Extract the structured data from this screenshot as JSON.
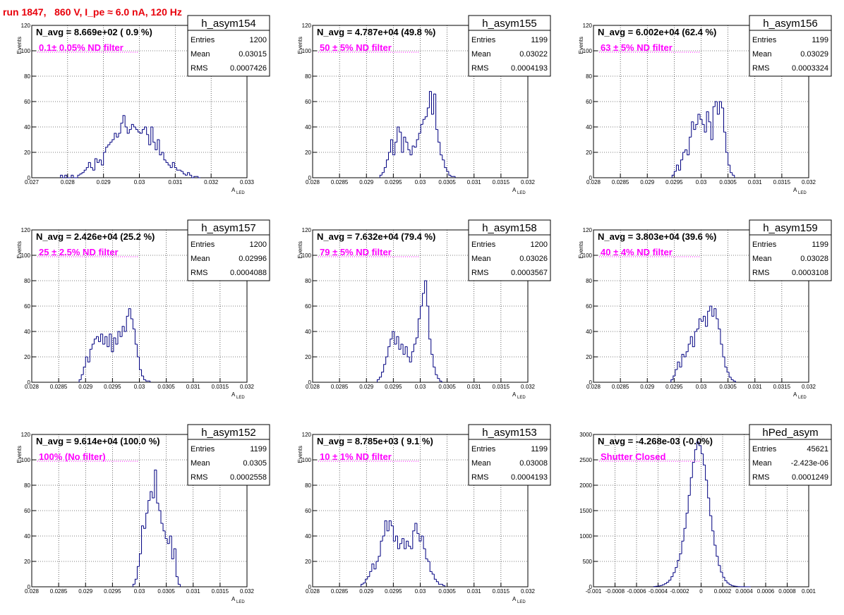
{
  "header": {
    "run_title": "run 1847,   860 V, I_pe ≈ 6.0 nA, 120 Hz"
  },
  "colors": {
    "histogram": "#000080",
    "title": "#e8000b",
    "annotation": "#ff00ff"
  },
  "chart_data": [
    {
      "type": "histogram",
      "name": "h_asym154",
      "navg": "N_avg = 8.669e+02 ( 0.9 %)",
      "note": "0.1± 0.05% ND filter",
      "stats": [
        [
          "Entries",
          "1200"
        ],
        [
          "Mean",
          "0.03015"
        ],
        [
          "RMS",
          "0.0007426"
        ]
      ],
      "ylabel": "Events",
      "xlabel": "A",
      "xlabel_sub": "LED",
      "xlim": [
        0.027,
        0.033
      ],
      "ylim": [
        0,
        120
      ],
      "xticks": [
        0.027,
        0.028,
        0.029,
        0.03,
        0.031,
        0.032,
        0.033
      ],
      "xtick_labels": [
        "0.027",
        "0.028",
        "0.029",
        "0.03",
        "0.031",
        "0.032",
        "0.033"
      ],
      "yticks": [
        0,
        20,
        40,
        60,
        80,
        100,
        120
      ],
      "ytick_labels": [
        "0",
        "20",
        "40",
        "60",
        "80",
        "100",
        "120"
      ],
      "bin_start": 0.0278,
      "bin_width": 6e-05,
      "values": [
        2,
        0,
        2,
        0,
        0,
        2,
        0,
        0,
        2,
        3,
        4,
        6,
        8,
        12,
        8,
        6,
        15,
        12,
        14,
        10,
        20,
        24,
        26,
        28,
        30,
        35,
        32,
        35,
        43,
        49,
        40,
        35,
        38,
        42,
        40,
        38,
        36,
        35,
        38,
        40,
        34,
        26,
        40,
        28,
        22,
        30,
        18,
        20,
        14,
        12,
        10,
        8,
        12,
        8,
        6,
        6,
        5,
        3,
        2,
        4,
        2,
        0,
        1,
        1,
        0
      ]
    },
    {
      "type": "histogram",
      "name": "h_asym155",
      "navg": "N_avg = 4.787e+04 (49.8 %)",
      "note": "50 ± 5% ND filter",
      "stats": [
        [
          "Entries",
          "1199"
        ],
        [
          "Mean",
          "0.03022"
        ],
        [
          "RMS",
          "0.0004193"
        ]
      ],
      "ylabel": "Events",
      "xlabel": "A",
      "xlabel_sub": "LED",
      "xlim": [
        0.028,
        0.032
      ],
      "ylim": [
        0,
        120
      ],
      "xticks": [
        0.028,
        0.0285,
        0.029,
        0.0295,
        0.03,
        0.0305,
        0.031,
        0.0315,
        0.032
      ],
      "xtick_labels": [
        "0.028",
        "0.0285",
        "0.029",
        "0.0295",
        "0.03",
        "0.0305",
        "0.031",
        "0.0315",
        "0.032"
      ],
      "yticks": [
        0,
        20,
        40,
        60,
        80,
        100,
        120
      ],
      "ytick_labels": [
        "0",
        "20",
        "40",
        "60",
        "80",
        "100",
        "120"
      ],
      "bin_start": 0.02925,
      "bin_width": 4e-05,
      "values": [
        2,
        4,
        8,
        14,
        20,
        30,
        18,
        28,
        40,
        36,
        20,
        32,
        28,
        22,
        18,
        25,
        24,
        30,
        35,
        42,
        46,
        48,
        55,
        68,
        50,
        66,
        38,
        28,
        18,
        14,
        8,
        5,
        2,
        1,
        1
      ]
    },
    {
      "type": "histogram",
      "name": "h_asym156",
      "navg": "N_avg = 6.002e+04 (62.4 %)",
      "note": "63 ± 5% ND filter",
      "stats": [
        [
          "Entries",
          "1199"
        ],
        [
          "Mean",
          "0.03029"
        ],
        [
          "RMS",
          "0.0003324"
        ]
      ],
      "ylabel": "Events",
      "xlabel": "A",
      "xlabel_sub": "LED",
      "xlim": [
        0.028,
        0.032
      ],
      "ylim": [
        0,
        120
      ],
      "xticks": [
        0.028,
        0.0285,
        0.029,
        0.0295,
        0.03,
        0.0305,
        0.031,
        0.0315,
        0.032
      ],
      "xtick_labels": [
        "0.028",
        "0.0285",
        "0.029",
        "0.0295",
        "0.03",
        "0.0305",
        "0.031",
        "0.0315",
        "0.032"
      ],
      "yticks": [
        0,
        20,
        40,
        60,
        80,
        100,
        120
      ],
      "ytick_labels": [
        "0",
        "20",
        "40",
        "60",
        "80",
        "100",
        "120"
      ],
      "bin_start": 0.02946,
      "bin_width": 4e-05,
      "values": [
        2,
        5,
        10,
        6,
        14,
        20,
        22,
        18,
        32,
        44,
        38,
        42,
        50,
        46,
        42,
        36,
        52,
        44,
        30,
        56,
        60,
        50,
        60,
        55,
        36,
        20,
        10,
        4,
        2
      ]
    },
    {
      "type": "histogram",
      "name": "h_asym157",
      "navg": "N_avg = 2.426e+04 (25.2 %)",
      "note": "25 ± 2.5% ND filter",
      "stats": [
        [
          "Entries",
          "1200"
        ],
        [
          "Mean",
          "0.02996"
        ],
        [
          "RMS",
          "0.0004088"
        ]
      ],
      "ylabel": "Events",
      "xlabel": "A",
      "xlabel_sub": "LED",
      "xlim": [
        0.028,
        0.032
      ],
      "ylim": [
        0,
        120
      ],
      "xticks": [
        0.028,
        0.0285,
        0.029,
        0.0295,
        0.03,
        0.0305,
        0.031,
        0.0315,
        0.032
      ],
      "xtick_labels": [
        "0.028",
        "0.0285",
        "0.029",
        "0.0295",
        "0.03",
        "0.0305",
        "0.031",
        "0.0315",
        "0.032"
      ],
      "yticks": [
        0,
        20,
        40,
        60,
        80,
        100,
        120
      ],
      "ytick_labels": [
        "0",
        "20",
        "40",
        "60",
        "80",
        "100",
        "120"
      ],
      "bin_start": 0.02888,
      "bin_width": 4e-05,
      "values": [
        2,
        6,
        12,
        20,
        16,
        26,
        30,
        34,
        36,
        32,
        38,
        30,
        36,
        28,
        38,
        24,
        35,
        30,
        40,
        36,
        44,
        40,
        52,
        58,
        50,
        42,
        30,
        20,
        10,
        5,
        2,
        1,
        1
      ]
    },
    {
      "type": "histogram",
      "name": "h_asym158",
      "navg": "N_avg = 7.632e+04 (79.4 %)",
      "note": "79 ± 5% ND filter",
      "stats": [
        [
          "Entries",
          "1200"
        ],
        [
          "Mean",
          "0.03026"
        ],
        [
          "RMS",
          "0.0003567"
        ]
      ],
      "ylabel": "Events",
      "xlabel": "A",
      "xlabel_sub": "LED",
      "xlim": [
        0.028,
        0.032
      ],
      "ylim": [
        0,
        120
      ],
      "xticks": [
        0.028,
        0.0285,
        0.029,
        0.0295,
        0.03,
        0.0305,
        0.031,
        0.0315,
        0.032
      ],
      "xtick_labels": [
        "0.028",
        "0.0285",
        "0.029",
        "0.0295",
        "0.03",
        "0.0305",
        "0.031",
        "0.0315",
        "0.032"
      ],
      "yticks": [
        0,
        20,
        40,
        60,
        80,
        100,
        120
      ],
      "ytick_labels": [
        "0",
        "20",
        "40",
        "60",
        "80",
        "100",
        "120"
      ],
      "bin_start": 0.0292,
      "bin_width": 4e-05,
      "values": [
        2,
        4,
        8,
        14,
        20,
        28,
        34,
        40,
        30,
        36,
        26,
        30,
        22,
        28,
        20,
        16,
        24,
        30,
        35,
        50,
        60,
        70,
        80,
        60,
        34,
        22,
        12,
        6,
        3,
        1
      ]
    },
    {
      "type": "histogram",
      "name": "h_asym159",
      "navg": "N_avg = 3.803e+04 (39.6 %)",
      "note": "40 ± 4% ND filter",
      "stats": [
        [
          "Entries",
          "1199"
        ],
        [
          "Mean",
          "0.03028"
        ],
        [
          "RMS",
          "0.0003108"
        ]
      ],
      "ylabel": "Events",
      "xlabel": "A",
      "xlabel_sub": "LED",
      "xlim": [
        0.028,
        0.032
      ],
      "ylim": [
        0,
        120
      ],
      "xticks": [
        0.028,
        0.0285,
        0.029,
        0.0295,
        0.03,
        0.0305,
        0.031,
        0.0315,
        0.032
      ],
      "xtick_labels": [
        "0.028",
        "0.0285",
        "0.029",
        "0.0295",
        "0.03",
        "0.0305",
        "0.031",
        "0.0315",
        "0.032"
      ],
      "yticks": [
        0,
        20,
        40,
        60,
        80,
        100,
        120
      ],
      "ytick_labels": [
        "0",
        "20",
        "40",
        "60",
        "80",
        "100",
        "120"
      ],
      "bin_start": 0.02944,
      "bin_width": 4e-05,
      "values": [
        2,
        5,
        10,
        16,
        12,
        22,
        20,
        24,
        30,
        36,
        28,
        40,
        42,
        50,
        48,
        52,
        44,
        56,
        60,
        52,
        58,
        50,
        42,
        30,
        20,
        12,
        8,
        4,
        2,
        1
      ]
    },
    {
      "type": "histogram",
      "name": "h_asym152",
      "navg": "N_avg = 9.614e+04 (100.0 %)",
      "note": "100% (No filter)",
      "stats": [
        [
          "Entries",
          "1199"
        ],
        [
          "Mean",
          "0.0305"
        ],
        [
          "RMS",
          "0.0002558"
        ]
      ],
      "ylabel": "Events",
      "xlabel": "A",
      "xlabel_sub": "LED",
      "xlim": [
        0.028,
        0.032
      ],
      "ylim": [
        0,
        120
      ],
      "xticks": [
        0.028,
        0.0285,
        0.029,
        0.0295,
        0.03,
        0.0305,
        0.031,
        0.0315,
        0.032
      ],
      "xtick_labels": [
        "0.028",
        "0.0285",
        "0.029",
        "0.0295",
        "0.03",
        "0.0305",
        "0.031",
        "0.0315",
        "0.032"
      ],
      "yticks": [
        0,
        20,
        40,
        60,
        80,
        100,
        120
      ],
      "ytick_labels": [
        "0",
        "20",
        "40",
        "60",
        "80",
        "100",
        "120"
      ],
      "bin_start": 0.02988,
      "bin_width": 4e-05,
      "values": [
        2,
        6,
        16,
        26,
        48,
        46,
        58,
        68,
        75,
        70,
        92,
        66,
        60,
        50,
        44,
        38,
        34,
        40,
        22,
        30,
        8,
        2
      ]
    },
    {
      "type": "histogram",
      "name": "h_asym153",
      "navg": "N_avg = 8.785e+03 ( 9.1 %)",
      "note": "10 ± 1% ND filter",
      "stats": [
        [
          "Entries",
          "1199"
        ],
        [
          "Mean",
          "0.03008"
        ],
        [
          "RMS",
          "0.0004193"
        ]
      ],
      "ylabel": "Events",
      "xlabel": "A",
      "xlabel_sub": "LED",
      "xlim": [
        0.028,
        0.032
      ],
      "ylim": [
        0,
        120
      ],
      "xticks": [
        0.028,
        0.0285,
        0.029,
        0.0295,
        0.03,
        0.0305,
        0.031,
        0.0315,
        0.032
      ],
      "xtick_labels": [
        "0.028",
        "0.0285",
        "0.029",
        "0.0295",
        "0.03",
        "0.0305",
        "0.031",
        "0.0315",
        "0.032"
      ],
      "yticks": [
        0,
        20,
        40,
        60,
        80,
        100,
        120
      ],
      "ytick_labels": [
        "0",
        "20",
        "40",
        "60",
        "80",
        "100",
        "120"
      ],
      "bin_start": 0.0289,
      "bin_width": 4e-05,
      "values": [
        2,
        3,
        6,
        8,
        12,
        18,
        14,
        20,
        24,
        36,
        40,
        52,
        44,
        52,
        48,
        36,
        40,
        30,
        34,
        38,
        30,
        36,
        32,
        30,
        44,
        50,
        42,
        36,
        40,
        30,
        22,
        20,
        12,
        10,
        6,
        4,
        2,
        2,
        1
      ]
    },
    {
      "type": "histogram",
      "name": "hPed_asym",
      "navg": "N_avg = -4.268e-03 (-0.0%)",
      "note": "Shutter Closed",
      "stats": [
        [
          "Entries",
          "45621"
        ],
        [
          "Mean",
          "-2.423e-06"
        ],
        [
          "RMS",
          "0.0001249"
        ]
      ],
      "ylabel": "",
      "xlabel": "",
      "xlabel_sub": "",
      "xlim": [
        -0.001,
        0.001
      ],
      "ylim": [
        0,
        3000
      ],
      "xticks": [
        -0.001,
        -0.0008,
        -0.0006,
        -0.0004,
        -0.0002,
        0,
        0.0002,
        0.0004,
        0.0006,
        0.0008,
        0.001
      ],
      "xtick_labels": [
        "-0.001",
        "-0.0008",
        "-0.0006",
        "-0.0004",
        "-0.0002",
        "0",
        "0.0002",
        "0.0004",
        "0.0006",
        "0.0008",
        "0.001"
      ],
      "yticks": [
        0,
        500,
        1000,
        1500,
        2000,
        2500,
        3000
      ],
      "ytick_labels": [
        "0",
        "500",
        "1000",
        "1500",
        "2000",
        "2500",
        "3000"
      ],
      "bin_start": -0.00044,
      "bin_width": 2e-05,
      "values": [
        5,
        10,
        15,
        25,
        40,
        60,
        90,
        130,
        200,
        280,
        380,
        520,
        650,
        900,
        1150,
        1450,
        1800,
        2150,
        2450,
        2700,
        2850,
        2780,
        2620,
        2400,
        2100,
        1750,
        1400,
        1100,
        820,
        600,
        420,
        290,
        190,
        120,
        75,
        45,
        25,
        14,
        8,
        4,
        2,
        1,
        1,
        0,
        0
      ]
    }
  ]
}
